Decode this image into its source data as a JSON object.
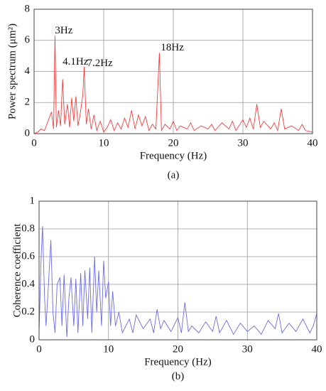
{
  "chart_data": [
    {
      "type": "line",
      "caption": "(a)",
      "xlabel": "Frequency (Hz)",
      "ylabel": "Power spectrum (μm²)",
      "xlim": [
        0,
        40
      ],
      "xticks": [
        0,
        10,
        20,
        30,
        40
      ],
      "ylim": [
        0,
        8
      ],
      "yticks": [
        0,
        2,
        4,
        6,
        8
      ],
      "grid": true,
      "annotations": [
        {
          "text": "3Hz",
          "x": 3,
          "y": 6.6
        },
        {
          "text": "4.1Hz",
          "x": 4.1,
          "y": 4.6
        },
        {
          "text": "7.2Hz",
          "x": 7.6,
          "y": 4.5
        },
        {
          "text": "18Hz",
          "x": 18.2,
          "y": 5.5
        }
      ],
      "series": [
        {
          "color": "#ff3b3b",
          "x": [
            0,
            0.5,
            1,
            1.5,
            2,
            2.5,
            2.8,
            3,
            3.2,
            3.5,
            3.8,
            4.1,
            4.4,
            4.8,
            5.1,
            5.4,
            5.7,
            6,
            6.3,
            6.6,
            7,
            7.2,
            7.5,
            7.8,
            8.2,
            8.6,
            9,
            9.5,
            10,
            10.5,
            11,
            11.5,
            12,
            12.5,
            13,
            13.5,
            14,
            14.5,
            15,
            15.5,
            16,
            16.5,
            17,
            17.5,
            18,
            18.3,
            18.8,
            19.5,
            20,
            20.5,
            21,
            22,
            22.5,
            23,
            24,
            25,
            25.5,
            26,
            27,
            28,
            28.5,
            29,
            30,
            30.5,
            31,
            31.5,
            32,
            32.5,
            33,
            34,
            34.5,
            35,
            35.5,
            36,
            37,
            38,
            38.5,
            39,
            40
          ],
          "values": [
            0,
            0.1,
            0.3,
            0.2,
            0.8,
            1.4,
            0.3,
            6.3,
            0.4,
            1.5,
            0.5,
            3.5,
            0.6,
            1.9,
            0.4,
            2.3,
            0.8,
            2.4,
            0.5,
            1.2,
            2.5,
            4.3,
            0.6,
            1.6,
            0.3,
            1.2,
            0.2,
            0.8,
            0.1,
            0.4,
            0.9,
            0.2,
            0.7,
            0.3,
            1.0,
            0.4,
            1.5,
            0.3,
            1.2,
            0.5,
            1.1,
            0.2,
            0.6,
            0.3,
            5.2,
            0.2,
            0.6,
            0.3,
            0.8,
            0.2,
            0.5,
            0.3,
            0.7,
            0.2,
            0.5,
            0.3,
            0.6,
            0.2,
            0.7,
            0.3,
            0.8,
            0.2,
            0.9,
            0.4,
            1.0,
            0.3,
            1.9,
            0.4,
            0.8,
            0.3,
            0.7,
            0.2,
            1.6,
            0.3,
            0.5,
            0.2,
            0.6,
            0.2,
            0.1
          ]
        }
      ]
    },
    {
      "type": "line",
      "caption": "(b)",
      "xlabel": "Frequency (Hz)",
      "ylabel": "Coherence coefficient",
      "xlim": [
        0,
        40
      ],
      "xticks": [
        0,
        10,
        20,
        30,
        40
      ],
      "ylim": [
        0,
        1
      ],
      "yticks": [
        0,
        0.2,
        0.4,
        0.6,
        0.8,
        1
      ],
      "grid": true,
      "annotations": [],
      "series": [
        {
          "color": "#6a6aee",
          "x": [
            0,
            0.3,
            0.5,
            0.8,
            1,
            1.3,
            1.7,
            2,
            2.3,
            2.6,
            3,
            3.3,
            3.6,
            4,
            4.3,
            4.6,
            5,
            5.3,
            5.6,
            6,
            6.3,
            6.6,
            7,
            7.3,
            7.6,
            8,
            8.3,
            8.6,
            9,
            9.3,
            9.6,
            10,
            10.3,
            10.6,
            11,
            11.5,
            12,
            13,
            13.5,
            14,
            15,
            16,
            16.5,
            17,
            17.5,
            18,
            19,
            20,
            20.5,
            21,
            21.5,
            22,
            23,
            24,
            25,
            25.5,
            26,
            27,
            28,
            29,
            30,
            31,
            32,
            33,
            34,
            34.5,
            35,
            36,
            37,
            38,
            39,
            39.5,
            40
          ],
          "values": [
            0.05,
            0.6,
            0.82,
            0.3,
            0.1,
            0.35,
            0.72,
            0.2,
            0.05,
            0.4,
            0.45,
            0.1,
            0.47,
            0.02,
            0.3,
            0.45,
            0.1,
            0.44,
            0.05,
            0.48,
            0.1,
            0.5,
            0.15,
            0.52,
            0.05,
            0.6,
            0.2,
            0.5,
            0.1,
            0.57,
            0.3,
            0.42,
            0.1,
            0.35,
            0.1,
            0.2,
            0.05,
            0.15,
            0.05,
            0.18,
            0.08,
            0.15,
            0.05,
            0.22,
            0.08,
            0.14,
            0.06,
            0.16,
            0.05,
            0.27,
            0.06,
            0.1,
            0.05,
            0.13,
            0.06,
            0.17,
            0.05,
            0.14,
            0.04,
            0.12,
            0.06,
            0.1,
            0.04,
            0.14,
            0.08,
            0.19,
            0.05,
            0.12,
            0.06,
            0.15,
            0.05,
            0.1,
            0.19
          ]
        }
      ]
    }
  ]
}
